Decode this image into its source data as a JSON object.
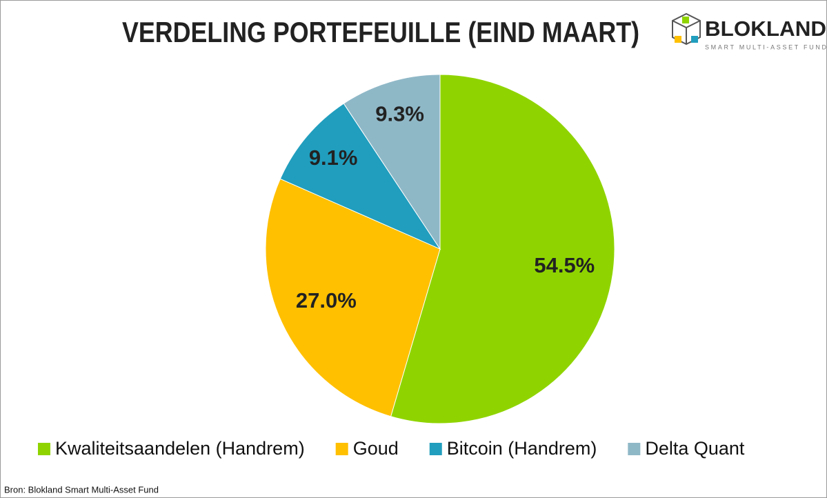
{
  "chart_data": {
    "type": "pie",
    "title": "VERDELING PORTEFEUILLE (EIND MAART)",
    "logo": {
      "name": "BLOKLAND",
      "tagline": "SMART MULTI-ASSET FUND"
    },
    "categories": [
      "Kwaliteitsaandelen (Handrem)",
      "Goud",
      "Bitcoin (Handrem)",
      "Delta Quant"
    ],
    "values": [
      54.5,
      27.0,
      9.1,
      9.3
    ],
    "value_labels": [
      "54.5%",
      "27.0%",
      "9.1%",
      "9.3%"
    ],
    "colors": [
      "#8fd400",
      "#ffc000",
      "#219ebe",
      "#8fb8c7"
    ],
    "legend": "bottom",
    "source": "Bron: Blokland Smart Multi-Asset Fund"
  }
}
